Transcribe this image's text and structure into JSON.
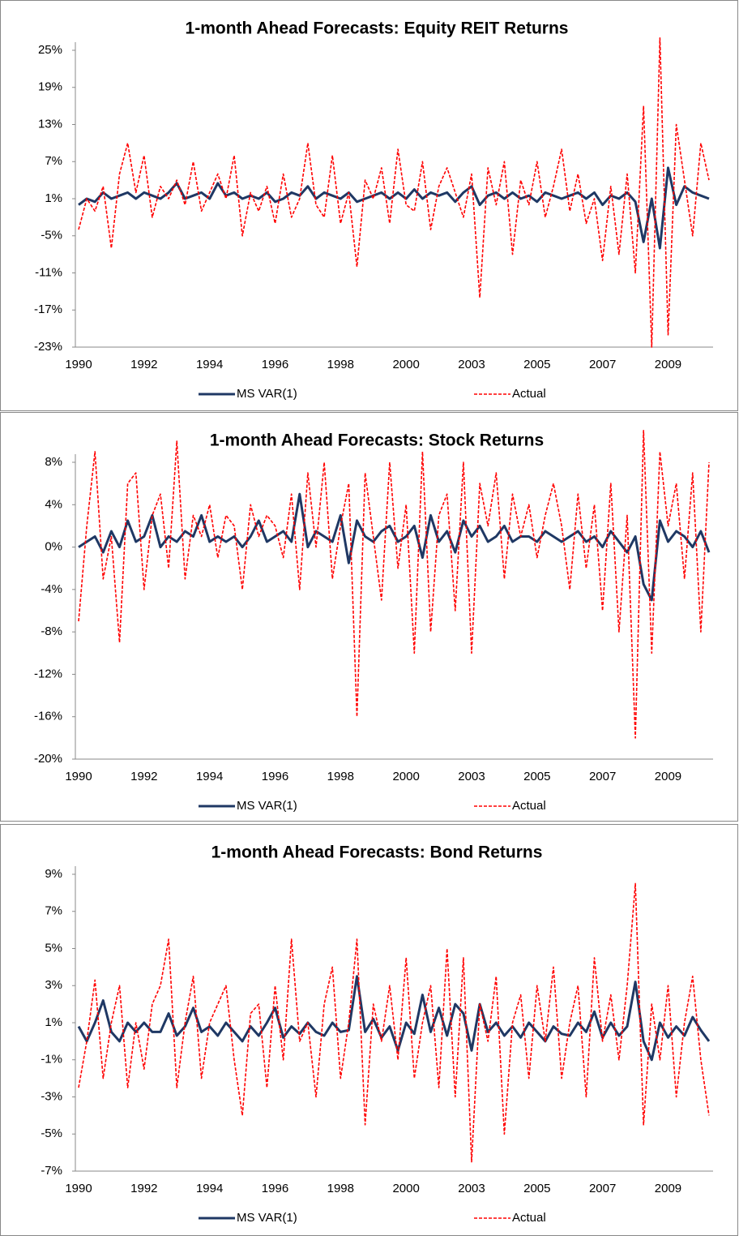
{
  "chart_data": [
    {
      "type": "line",
      "title": "1-month Ahead Forecasts: Equity REIT Returns",
      "categories": [
        "1990",
        null,
        null,
        null,
        null,
        null,
        null,
        null,
        "1992",
        null,
        null,
        null,
        null,
        null,
        null,
        null,
        "1994",
        null,
        null,
        null,
        null,
        null,
        null,
        null,
        "1996",
        null,
        null,
        null,
        null,
        null,
        null,
        null,
        "1998",
        null,
        null,
        null,
        null,
        null,
        null,
        null,
        "2000",
        null,
        null,
        null,
        null,
        null,
        null,
        null,
        "2003",
        null,
        null,
        null,
        null,
        null,
        null,
        null,
        "2005",
        null,
        null,
        null,
        null,
        null,
        null,
        null,
        "2007",
        null,
        null,
        null,
        null,
        null,
        null,
        null,
        "2009",
        null,
        null,
        null,
        null,
        null
      ],
      "series": [
        {
          "name": "MS VAR(1)",
          "color": "#1f3864",
          "values": [
            0,
            1,
            0.5,
            2,
            1,
            1.5,
            2,
            1,
            2,
            1.5,
            1,
            2,
            3.5,
            1,
            1.5,
            2,
            1,
            3.5,
            1.5,
            2,
            1,
            1.5,
            1,
            2,
            0.5,
            1,
            2,
            1.5,
            3,
            1,
            2,
            1.5,
            1,
            2,
            0.5,
            1,
            1.5,
            2,
            1,
            2,
            1,
            2.5,
            1,
            2,
            1.5,
            2,
            0.5,
            2,
            3,
            0,
            1.5,
            2,
            1,
            2,
            1,
            1.5,
            0.5,
            2,
            1.5,
            1,
            1.5,
            2,
            1,
            2,
            0,
            1.5,
            1,
            2,
            0.5,
            -6,
            1,
            -7,
            6,
            0,
            3,
            2,
            1.5,
            1
          ]
        },
        {
          "name": "Actual",
          "color": "#ff0000",
          "values": [
            -4,
            1,
            -1,
            3,
            -7,
            5,
            10,
            2,
            8,
            -2,
            3,
            1,
            4,
            0,
            7,
            -1,
            2,
            5,
            1,
            8,
            -5,
            2,
            -1,
            3,
            -3,
            5,
            -2,
            1,
            10,
            0,
            -2,
            8,
            -3,
            2,
            -10,
            4,
            1,
            6,
            -3,
            9,
            0,
            -1,
            7,
            -4,
            3,
            6,
            2,
            -2,
            5,
            -15,
            6,
            0,
            7,
            -8,
            4,
            0,
            7,
            -2,
            3,
            9,
            -1,
            5,
            -3,
            1,
            -9,
            3,
            -8,
            5,
            -11,
            16,
            -23,
            27,
            -21,
            13,
            4,
            -5,
            10,
            4
          ]
        }
      ],
      "ylim": [
        -23,
        25
      ],
      "yticks": [
        {
          "value": -23,
          "label": "-23%"
        },
        {
          "value": -17,
          "label": "-17%"
        },
        {
          "value": -11,
          "label": "-11%"
        },
        {
          "value": -5,
          "label": "-5%"
        },
        {
          "value": 1,
          "label": "1%"
        },
        {
          "value": 7,
          "label": "7%"
        },
        {
          "value": 13,
          "label": "13%"
        },
        {
          "value": 19,
          "label": "19%"
        },
        {
          "value": 25,
          "label": "25%"
        }
      ],
      "grid": false
    },
    {
      "type": "line",
      "title": "1-month Ahead Forecasts: Stock Returns",
      "categories": [
        "1990",
        null,
        null,
        null,
        null,
        null,
        null,
        null,
        "1992",
        null,
        null,
        null,
        null,
        null,
        null,
        null,
        "1994",
        null,
        null,
        null,
        null,
        null,
        null,
        null,
        "1996",
        null,
        null,
        null,
        null,
        null,
        null,
        null,
        "1998",
        null,
        null,
        null,
        null,
        null,
        null,
        null,
        "2000",
        null,
        null,
        null,
        null,
        null,
        null,
        null,
        "2003",
        null,
        null,
        null,
        null,
        null,
        null,
        null,
        "2005",
        null,
        null,
        null,
        null,
        null,
        null,
        null,
        "2007",
        null,
        null,
        null,
        null,
        null,
        null,
        null,
        "2009",
        null,
        null,
        null,
        null,
        null
      ],
      "series": [
        {
          "name": "MS VAR(1)",
          "color": "#1f3864",
          "values": [
            0,
            0.5,
            1,
            -0.5,
            1.5,
            0,
            2.5,
            0.5,
            1,
            3,
            0,
            1,
            0.5,
            1.5,
            1,
            3,
            0.5,
            1,
            0.5,
            1,
            0,
            1,
            2.5,
            0.5,
            1,
            1.5,
            0.5,
            5,
            0,
            1.5,
            1,
            0.5,
            3,
            -1.5,
            2.5,
            1,
            0.5,
            1.5,
            2,
            0.5,
            1,
            2,
            -1,
            3,
            0.5,
            1.5,
            -0.5,
            2.5,
            1,
            2,
            0.5,
            1,
            2,
            0.5,
            1,
            1,
            0.5,
            1.5,
            1,
            0.5,
            1,
            1.5,
            0.5,
            1,
            0,
            1.5,
            0.5,
            -0.5,
            1,
            -3.5,
            -5,
            2.5,
            0.5,
            1.5,
            1,
            0,
            1.5,
            -0.5
          ]
        },
        {
          "name": "Actual",
          "color": "#ff0000",
          "values": [
            -7,
            2,
            9,
            -3,
            1,
            -9,
            6,
            7,
            -4,
            3,
            5,
            -2,
            10,
            -3,
            3,
            1,
            4,
            -1,
            3,
            2,
            -4,
            4,
            1,
            3,
            2,
            -1,
            5,
            -4,
            7,
            0,
            8,
            -3,
            2,
            6,
            -16,
            7,
            1,
            -5,
            8,
            -2,
            4,
            -10,
            9,
            -8,
            3,
            5,
            -6,
            8,
            -10,
            6,
            2,
            7,
            -3,
            5,
            1,
            4,
            -1,
            3,
            6,
            2,
            -4,
            5,
            -2,
            4,
            -6,
            6,
            -8,
            3,
            -18,
            11,
            -10,
            9,
            2,
            6,
            -3,
            7,
            -8,
            8
          ]
        }
      ],
      "ylim": [
        -20,
        8
      ],
      "yticks": [
        {
          "value": -20,
          "label": "-20%"
        },
        {
          "value": -16,
          "label": "-16%"
        },
        {
          "value": -12,
          "label": "-12%"
        },
        {
          "value": -8,
          "label": "-8%"
        },
        {
          "value": -4,
          "label": "-4%"
        },
        {
          "value": 0,
          "label": "0%"
        },
        {
          "value": 4,
          "label": "4%"
        },
        {
          "value": 8,
          "label": "8%"
        }
      ],
      "grid": false
    },
    {
      "type": "line",
      "title": "1-month Ahead Forecasts: Bond Returns",
      "categories": [
        "1990",
        null,
        null,
        null,
        null,
        null,
        null,
        null,
        "1992",
        null,
        null,
        null,
        null,
        null,
        null,
        null,
        "1994",
        null,
        null,
        null,
        null,
        null,
        null,
        null,
        "1996",
        null,
        null,
        null,
        null,
        null,
        null,
        null,
        "1998",
        null,
        null,
        null,
        null,
        null,
        null,
        null,
        "2000",
        null,
        null,
        null,
        null,
        null,
        null,
        null,
        "2003",
        null,
        null,
        null,
        null,
        null,
        null,
        null,
        "2005",
        null,
        null,
        null,
        null,
        null,
        null,
        null,
        "2007",
        null,
        null,
        null,
        null,
        null,
        null,
        null,
        "2009",
        null,
        null,
        null,
        null,
        null
      ],
      "series": [
        {
          "name": "MS VAR(1)",
          "color": "#1f3864",
          "values": [
            0.8,
            0,
            1,
            2.2,
            0.5,
            0,
            1,
            0.5,
            1,
            0.5,
            0.5,
            1.5,
            0.3,
            0.8,
            1.8,
            0.5,
            0.8,
            0.3,
            1,
            0.5,
            0,
            0.8,
            0.3,
            1,
            1.8,
            0.2,
            0.8,
            0.4,
            1,
            0.5,
            0.3,
            1,
            0.5,
            0.6,
            3.5,
            0.5,
            1.2,
            0.2,
            0.8,
            -0.5,
            1,
            0.4,
            2.5,
            0.5,
            1.8,
            0.3,
            2,
            1.5,
            -0.5,
            2,
            0.5,
            1,
            0.3,
            0.8,
            0.2,
            1,
            0.5,
            0,
            0.8,
            0.4,
            0.3,
            1,
            0.5,
            1.6,
            0.2,
            1,
            0.3,
            0.8,
            3.2,
            0,
            -1,
            1,
            0.2,
            0.8,
            0.3,
            1.3,
            0.6,
            0
          ]
        },
        {
          "name": "Actual",
          "color": "#ff0000",
          "values": [
            -2.5,
            0,
            3.3,
            -2,
            1,
            3,
            -2.5,
            1,
            -1.5,
            2,
            3,
            5.5,
            -2.5,
            1,
            3.5,
            -2,
            1,
            2,
            3,
            -1,
            -4,
            1.5,
            2,
            -2.5,
            3,
            -1,
            5.5,
            0,
            1,
            -3,
            2,
            4,
            -2,
            1,
            5.5,
            -4.5,
            2,
            0,
            3,
            -1,
            4.5,
            -2,
            1,
            3,
            -2.5,
            5,
            -3,
            4.5,
            -6.5,
            2,
            0,
            3.5,
            -5,
            1,
            2.5,
            -2,
            3,
            0,
            4,
            -2,
            1,
            3,
            -3,
            4.5,
            0,
            2.5,
            -1,
            3,
            8.5,
            -4.5,
            2,
            -1,
            3,
            -3,
            1,
            3.5,
            -1,
            -4
          ]
        }
      ],
      "ylim": [
        -7,
        9
      ],
      "yticks": [
        {
          "value": -7,
          "label": "-7%"
        },
        {
          "value": -5,
          "label": "-5%"
        },
        {
          "value": -3,
          "label": "-3%"
        },
        {
          "value": -1,
          "label": "-1%"
        },
        {
          "value": 1,
          "label": "1%"
        },
        {
          "value": 3,
          "label": "3%"
        },
        {
          "value": 5,
          "label": "5%"
        },
        {
          "value": 7,
          "label": "7%"
        },
        {
          "value": 9,
          "label": "9%"
        }
      ],
      "grid": false
    }
  ]
}
